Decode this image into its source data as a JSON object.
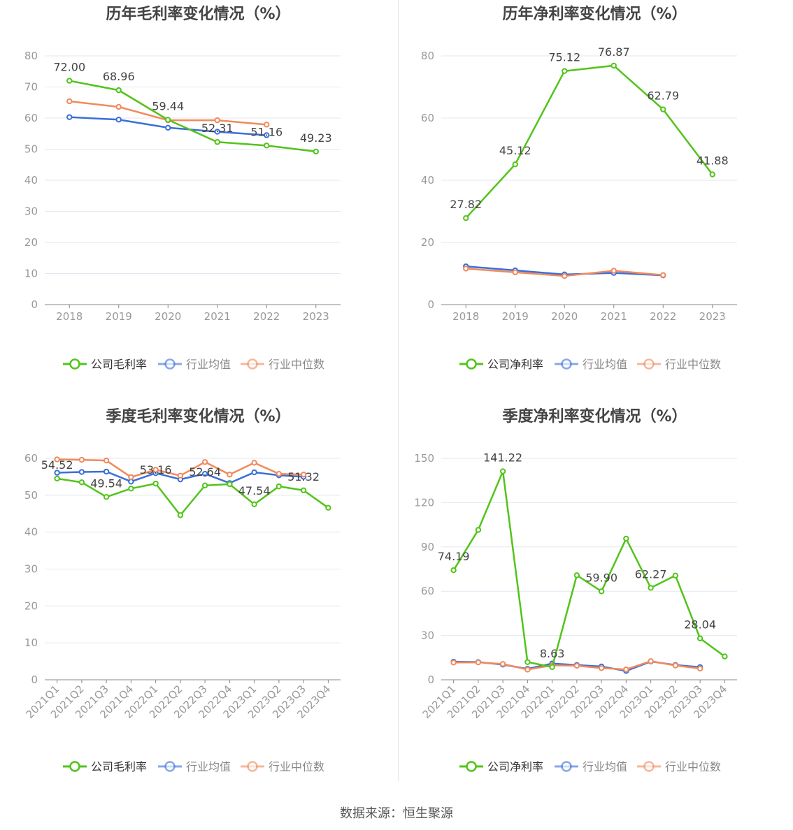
{
  "colors": {
    "company": "#52c41a",
    "avg": "#3a6fd8",
    "median": "#f08a5d",
    "grid": "#e3e7ef",
    "axis": "#888888",
    "text": "#999999"
  },
  "legend": {
    "avg": "行业均值",
    "median": "行业中位数"
  },
  "source": "数据来源：恒生聚源",
  "chart_data": [
    {
      "id": "annual-gross",
      "type": "line",
      "title": "历年毛利率变化情况（%）",
      "company_label": "公司毛利率",
      "categories": [
        "2018",
        "2019",
        "2020",
        "2021",
        "2022",
        "2023"
      ],
      "ylim": [
        0,
        80
      ],
      "yticks": [
        0,
        10,
        20,
        30,
        40,
        50,
        60,
        70,
        80
      ],
      "series": [
        {
          "key": "company",
          "values": [
            72.0,
            68.96,
            59.44,
            52.31,
            51.16,
            49.23
          ]
        },
        {
          "key": "avg",
          "values": [
            60.3,
            59.5,
            56.9,
            55.6,
            54.5,
            null
          ]
        },
        {
          "key": "median",
          "values": [
            65.4,
            63.6,
            59.3,
            59.3,
            57.9,
            null
          ]
        }
      ],
      "labels": [
        {
          "i": 0,
          "text": "72.00"
        },
        {
          "i": 1,
          "text": "68.96"
        },
        {
          "i": 2,
          "text": "59.44"
        },
        {
          "i": 3,
          "text": "52.31"
        },
        {
          "i": 4,
          "text": "51.16"
        },
        {
          "i": 5,
          "text": "49.23"
        }
      ]
    },
    {
      "id": "annual-net",
      "type": "line",
      "title": "历年净利率变化情况（%）",
      "company_label": "公司净利率",
      "categories": [
        "2018",
        "2019",
        "2020",
        "2021",
        "2022",
        "2023"
      ],
      "ylim": [
        0,
        80
      ],
      "yticks": [
        0,
        20,
        40,
        60,
        80
      ],
      "series": [
        {
          "key": "company",
          "values": [
            27.82,
            45.12,
            75.12,
            76.87,
            62.79,
            41.88
          ]
        },
        {
          "key": "avg",
          "values": [
            12.3,
            11.0,
            9.7,
            10.2,
            9.4,
            null
          ]
        },
        {
          "key": "median",
          "values": [
            11.6,
            10.4,
            9.2,
            10.9,
            9.5,
            null
          ]
        }
      ],
      "labels": [
        {
          "i": 0,
          "text": "27.82"
        },
        {
          "i": 1,
          "text": "45.12"
        },
        {
          "i": 2,
          "text": "75.12"
        },
        {
          "i": 3,
          "text": "76.87"
        },
        {
          "i": 4,
          "text": "62.79"
        },
        {
          "i": 5,
          "text": "41.88"
        }
      ]
    },
    {
      "id": "quarterly-gross",
      "type": "line",
      "title": "季度毛利率变化情况（%）",
      "company_label": "公司毛利率",
      "categories": [
        "2021Q1",
        "2021Q2",
        "2021Q3",
        "2021Q4",
        "2022Q1",
        "2022Q2",
        "2022Q3",
        "2022Q4",
        "2023Q1",
        "2023Q2",
        "2023Q3",
        "2023Q4"
      ],
      "ylim": [
        0,
        60
      ],
      "yticks": [
        0,
        10,
        20,
        30,
        40,
        50,
        60
      ],
      "series": [
        {
          "key": "company",
          "values": [
            54.52,
            53.5,
            49.54,
            51.8,
            53.16,
            44.6,
            52.64,
            53.0,
            47.54,
            52.4,
            51.32,
            46.6
          ]
        },
        {
          "key": "avg",
          "values": [
            56.1,
            56.3,
            56.4,
            53.7,
            56.0,
            54.3,
            55.8,
            53.3,
            56.2,
            55.4,
            55.0,
            null
          ]
        },
        {
          "key": "median",
          "values": [
            59.7,
            59.6,
            59.4,
            54.9,
            56.9,
            55.3,
            59.0,
            55.6,
            58.8,
            55.8,
            55.6,
            null
          ]
        }
      ],
      "labels": [
        {
          "i": 0,
          "text": "54.52"
        },
        {
          "i": 2,
          "text": "49.54"
        },
        {
          "i": 4,
          "text": "53.16"
        },
        {
          "i": 6,
          "text": "52.64"
        },
        {
          "i": 8,
          "text": "47.54"
        },
        {
          "i": 10,
          "text": "51.32"
        }
      ]
    },
    {
      "id": "quarterly-net",
      "type": "line",
      "title": "季度净利率变化情况（%）",
      "company_label": "公司净利率",
      "categories": [
        "2021Q1",
        "2021Q2",
        "2021Q3",
        "2021Q4",
        "2022Q1",
        "2022Q2",
        "2022Q3",
        "2022Q4",
        "2023Q1",
        "2023Q2",
        "2023Q3",
        "2023Q4"
      ],
      "ylim": [
        0,
        150
      ],
      "yticks": [
        0,
        30,
        60,
        90,
        120,
        150
      ],
      "series": [
        {
          "key": "company",
          "values": [
            74.19,
            101.5,
            141.22,
            12.0,
            8.63,
            70.8,
            59.9,
            95.6,
            62.27,
            70.6,
            28.04,
            15.8
          ]
        },
        {
          "key": "avg",
          "values": [
            12.2,
            12.0,
            10.3,
            7.4,
            11.0,
            10.0,
            9.0,
            6.0,
            12.4,
            10.0,
            8.6,
            null
          ]
        },
        {
          "key": "median",
          "values": [
            11.7,
            11.8,
            10.7,
            6.9,
            9.8,
            9.5,
            7.9,
            7.0,
            12.6,
            9.7,
            7.6,
            null
          ]
        }
      ],
      "labels": [
        {
          "i": 0,
          "text": "74.19"
        },
        {
          "i": 2,
          "text": "141.22"
        },
        {
          "i": 4,
          "text": "8.63"
        },
        {
          "i": 6,
          "text": "59.90"
        },
        {
          "i": 8,
          "text": "62.27"
        },
        {
          "i": 10,
          "text": "28.04"
        }
      ]
    }
  ]
}
